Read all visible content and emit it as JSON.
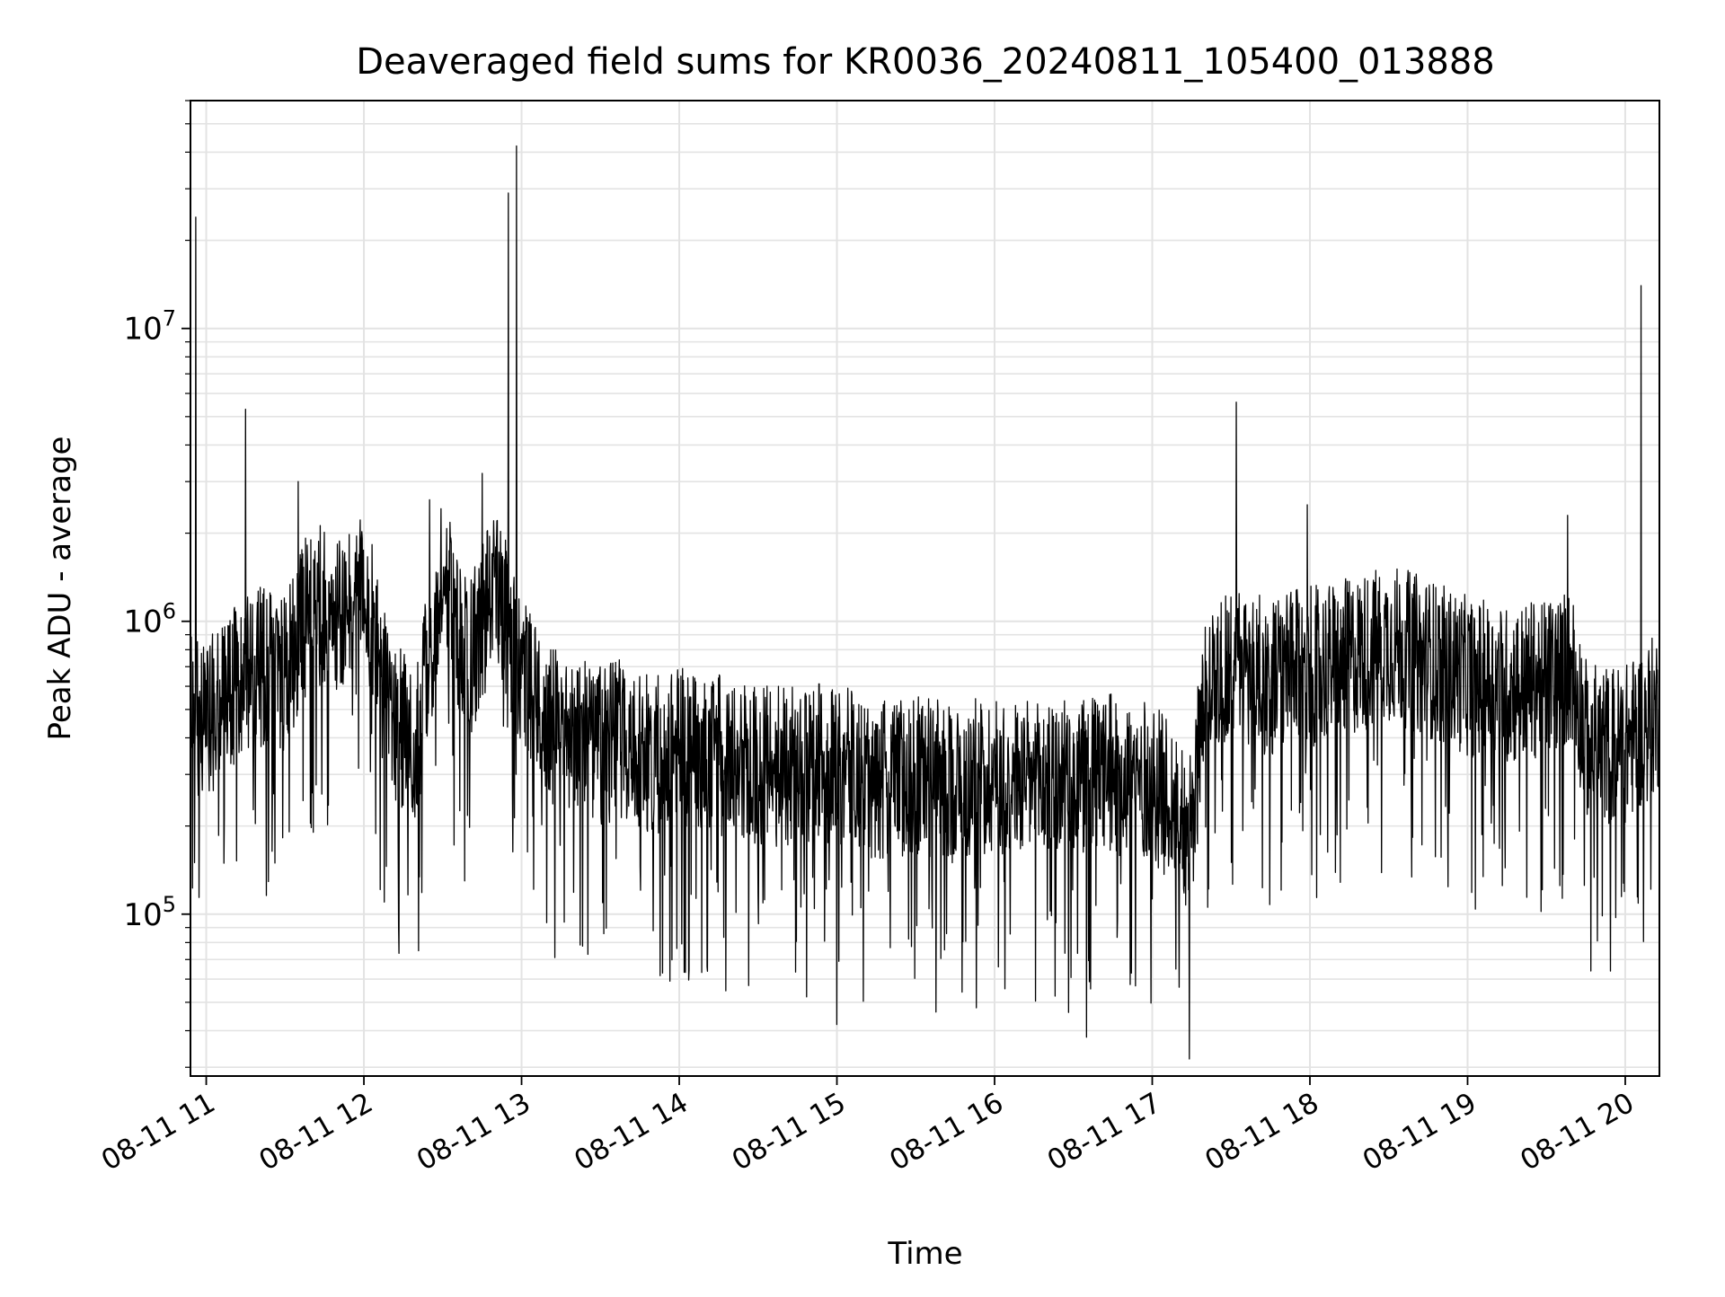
{
  "chart_data": {
    "type": "line",
    "title": "Deaveraged field sums for KR0036_20240811_105400_013888",
    "xlabel": "Time",
    "ylabel": "Peak ADU - average",
    "x_axis": {
      "type": "time",
      "range": [
        "2024-08-11 10:54",
        "2024-08-11 20:13"
      ],
      "ticks": [
        "2024-08-11 11:00",
        "2024-08-11 12:00",
        "2024-08-11 13:00",
        "2024-08-11 14:00",
        "2024-08-11 15:00",
        "2024-08-11 16:00",
        "2024-08-11 17:00",
        "2024-08-11 18:00",
        "2024-08-11 19:00",
        "2024-08-11 20:00"
      ],
      "tick_labels": [
        "08-11 11",
        "08-11 12",
        "08-11 13",
        "08-11 14",
        "08-11 15",
        "08-11 16",
        "08-11 17",
        "08-11 18",
        "08-11 19",
        "08-11 20"
      ],
      "tick_label_rotation_deg": 30
    },
    "y_axis": {
      "scale": "log",
      "range": [
        28000,
        60000000
      ],
      "major_ticks": [
        100000,
        1000000,
        10000000
      ],
      "major_tick_labels": [
        {
          "base": "10",
          "exp": "5"
        },
        {
          "base": "10",
          "exp": "6"
        },
        {
          "base": "10",
          "exp": "7"
        }
      ]
    },
    "grid": true,
    "line_color": "#000000",
    "series": [
      {
        "x": [
          "10:54",
          "11:00",
          "11:10",
          "11:20",
          "11:30",
          "11:40",
          "11:50",
          "12:00",
          "12:10",
          "12:20",
          "12:30",
          "12:40",
          "12:50",
          "13:00",
          "13:10",
          "13:20",
          "13:30",
          "13:40",
          "13:50",
          "14:00",
          "14:15",
          "14:30",
          "14:45",
          "15:00",
          "15:15",
          "15:30",
          "15:45",
          "16:00",
          "16:15",
          "16:30",
          "16:45",
          "17:00",
          "17:10",
          "17:15",
          "17:20",
          "17:30",
          "17:45",
          "18:00",
          "18:15",
          "18:30",
          "18:45",
          "19:00",
          "19:15",
          "19:30",
          "19:40",
          "19:45",
          "19:50",
          "20:00",
          "20:13"
        ],
        "y": [
          500000,
          450000,
          600000,
          700000,
          650000,
          1200000,
          1000000,
          1400000,
          450000,
          400000,
          1500000,
          700000,
          1400000,
          700000,
          450000,
          400000,
          380000,
          400000,
          350000,
          380000,
          350000,
          320000,
          320000,
          330000,
          280000,
          300000,
          280000,
          300000,
          280000,
          290000,
          300000,
          280000,
          230000,
          180000,
          650000,
          700000,
          650000,
          700000,
          750000,
          850000,
          750000,
          650000,
          600000,
          650000,
          700000,
          400000,
          380000,
          380000,
          500000
        ]
      }
    ],
    "spikes": [
      {
        "x": "10:56",
        "y": 24000000
      },
      {
        "x": "11:15",
        "y": 5300000
      },
      {
        "x": "11:35",
        "y": 3000000
      },
      {
        "x": "12:25",
        "y": 2600000
      },
      {
        "x": "12:45",
        "y": 3200000
      },
      {
        "x": "12:55",
        "y": 29000000
      },
      {
        "x": "12:58",
        "y": 42000000
      },
      {
        "x": "15:00",
        "y": 42000
      },
      {
        "x": "16:35",
        "y": 38000
      },
      {
        "x": "17:32",
        "y": 5600000
      },
      {
        "x": "17:59",
        "y": 2500000
      },
      {
        "x": "19:38",
        "y": 2300000
      },
      {
        "x": "20:06",
        "y": 14000000
      }
    ]
  }
}
